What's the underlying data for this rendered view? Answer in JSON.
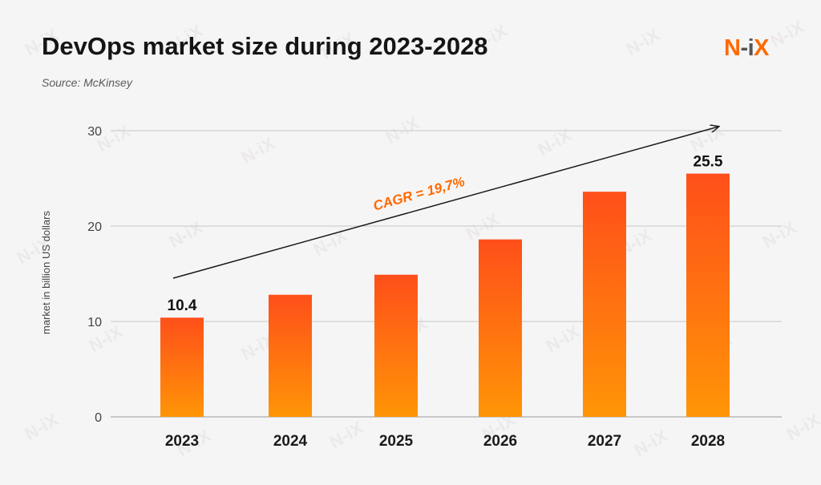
{
  "header": {
    "title": "DevOps market size during 2023-2028",
    "subtitle": "Source: McKinsey",
    "logo_parts": [
      "N",
      "-i",
      "X"
    ],
    "watermark": "N-iX"
  },
  "colors": {
    "bar_top": "#ff4f1a",
    "bar_bottom": "#ff9506",
    "accent": "#ff6a00",
    "grid": "#c8c8c8"
  },
  "chart_data": {
    "type": "bar",
    "categories": [
      "2023",
      "2024",
      "2025",
      "2026",
      "2027",
      "2028"
    ],
    "values": [
      10.4,
      12.8,
      14.9,
      18.6,
      23.6,
      25.5
    ],
    "data_labels": [
      "10.4",
      "",
      "",
      "",
      "",
      "25.5"
    ],
    "title": "DevOps market size during 2023-2028",
    "subtitle": "Source: McKinsey",
    "xlabel": "",
    "ylabel": "market in billion US dollars",
    "ylim": [
      0,
      30
    ],
    "yticks": [
      0,
      10,
      20,
      30
    ],
    "grid": true,
    "legend": "none",
    "annotation": {
      "text": "CAGR = 19,7%",
      "type": "trend-arrow",
      "from_category": "2023",
      "to_category": "2028"
    }
  }
}
